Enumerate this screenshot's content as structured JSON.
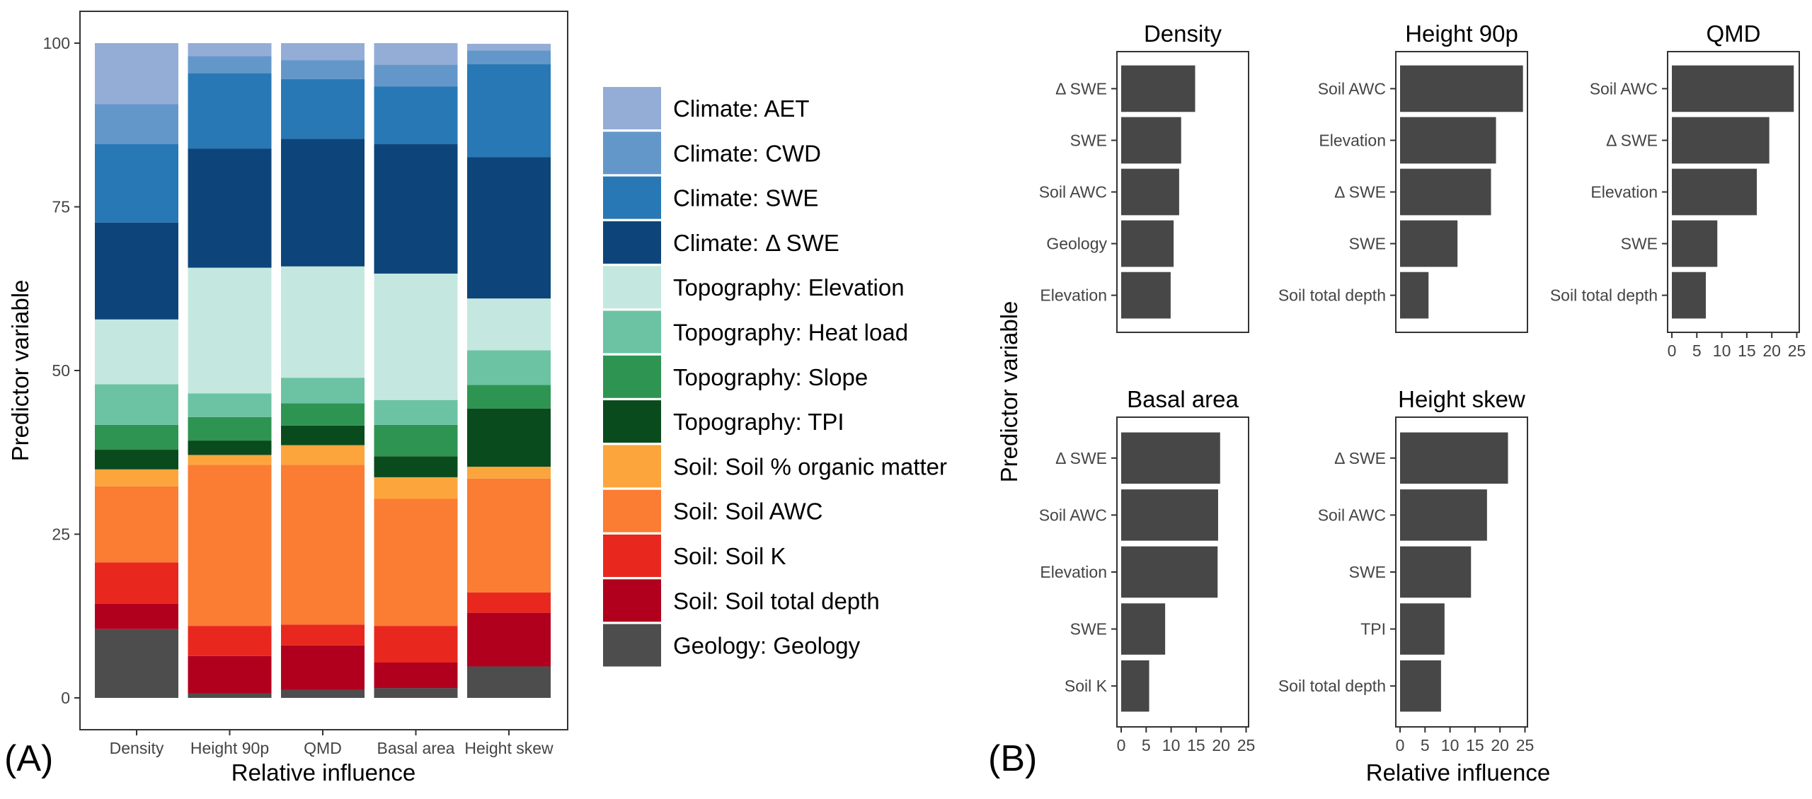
{
  "panel_labels": {
    "a": "(A)",
    "b": "(B)"
  },
  "legend_items": [
    {
      "label": "Climate: AET",
      "color": "#94ADD6"
    },
    {
      "label": "Climate: CWD",
      "color": "#6497C9"
    },
    {
      "label": "Climate: SWE",
      "color": "#2878B5"
    },
    {
      "label": "Climate: Δ SWE",
      "color": "#0D457B"
    },
    {
      "label": "Topography: Elevation",
      "color": "#C4E8E0"
    },
    {
      "label": "Topography: Heat load",
      "color": "#6BC3A3"
    },
    {
      "label": "Topography: Slope",
      "color": "#2E9452"
    },
    {
      "label": "Topography: TPI",
      "color": "#0A4B1E"
    },
    {
      "label": "Soil: Soil % organic matter",
      "color": "#FCA53C"
    },
    {
      "label": "Soil: Soil AWC",
      "color": "#FB7C33"
    },
    {
      "label": "Soil: Soil K",
      "color": "#E8281E"
    },
    {
      "label": "Soil: Soil total depth",
      "color": "#B0001D"
    },
    {
      "label": "Geology: Geology",
      "color": "#4D4D4D"
    }
  ],
  "chart_data": [
    {
      "panel": "A",
      "type": "bar",
      "stacked": true,
      "xlabel": "Relative influence",
      "ylabel": "Predictor variable",
      "ylim": [
        0,
        100
      ],
      "yticks": [
        0,
        25,
        50,
        75,
        100
      ],
      "categories": [
        "Density",
        "Height 90p",
        "QMD",
        "Basal area",
        "Height skew"
      ],
      "series": [
        {
          "name": "Geology: Geology",
          "values": [
            10.5,
            0.7,
            1.2,
            1.5,
            4.8
          ]
        },
        {
          "name": "Soil: Soil total depth",
          "values": [
            3.9,
            5.7,
            6.8,
            3.9,
            8.2
          ]
        },
        {
          "name": "Soil: Soil K",
          "values": [
            6.3,
            4.6,
            3.2,
            5.6,
            3.1
          ]
        },
        {
          "name": "Soil: Soil AWC",
          "values": [
            11.6,
            24.6,
            24.4,
            19.4,
            17.4
          ]
        },
        {
          "name": "Soil: Soil % organic matter",
          "values": [
            2.6,
            1.5,
            3.0,
            3.3,
            1.8
          ]
        },
        {
          "name": "Topography: TPI",
          "values": [
            3.0,
            2.2,
            3.0,
            3.2,
            8.9
          ]
        },
        {
          "name": "Topography: Slope",
          "values": [
            3.8,
            3.6,
            3.4,
            4.8,
            3.6
          ]
        },
        {
          "name": "Topography: Heat load",
          "values": [
            6.2,
            3.6,
            3.9,
            3.8,
            5.3
          ]
        },
        {
          "name": "Topography: Elevation",
          "values": [
            9.9,
            19.2,
            17.0,
            19.3,
            7.9
          ]
        },
        {
          "name": "Climate: Δ SWE",
          "values": [
            14.8,
            18.2,
            19.5,
            19.8,
            21.6
          ]
        },
        {
          "name": "Climate: SWE",
          "values": [
            12.0,
            11.5,
            9.1,
            8.8,
            14.2
          ]
        },
        {
          "name": "Climate: CWD",
          "values": [
            6.1,
            2.6,
            2.9,
            3.3,
            2.1
          ]
        },
        {
          "name": "Climate: AET",
          "values": [
            9.3,
            2.0,
            2.6,
            3.3,
            1.0
          ]
        }
      ]
    },
    {
      "panel": "B",
      "type": "bar",
      "orientation": "horizontal",
      "xlabel": "Relative influence",
      "ylabel": "Predictor variable",
      "xlim": [
        0,
        25
      ],
      "xticks": [
        0,
        5,
        10,
        15,
        20,
        25
      ],
      "facets": [
        {
          "title": "Density",
          "categories": [
            "Δ SWE",
            "SWE",
            "Soil AWC",
            "Geology",
            "Elevation"
          ],
          "values": [
            14.8,
            12.0,
            11.6,
            10.5,
            9.9
          ]
        },
        {
          "title": "Height 90p",
          "categories": [
            "Soil AWC",
            "Elevation",
            "Δ SWE",
            "SWE",
            "Soil total depth"
          ],
          "values": [
            24.6,
            19.2,
            18.2,
            11.5,
            5.7
          ]
        },
        {
          "title": "QMD",
          "categories": [
            "Soil AWC",
            "Δ SWE",
            "Elevation",
            "SWE",
            "Soil total depth"
          ],
          "values": [
            24.4,
            19.5,
            17.0,
            9.1,
            6.8
          ]
        },
        {
          "title": "Basal area",
          "categories": [
            "Δ SWE",
            "Soil AWC",
            "Elevation",
            "SWE",
            "Soil K"
          ],
          "values": [
            19.8,
            19.4,
            19.3,
            8.8,
            5.6
          ]
        },
        {
          "title": "Height skew",
          "categories": [
            "Δ SWE",
            "Soil AWC",
            "SWE",
            "TPI",
            "Soil total depth"
          ],
          "values": [
            21.6,
            17.4,
            14.2,
            8.9,
            8.2
          ]
        }
      ]
    }
  ]
}
